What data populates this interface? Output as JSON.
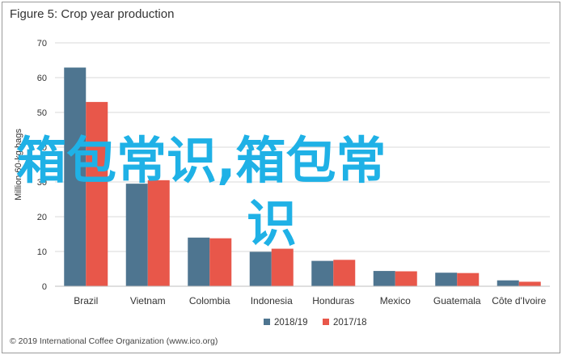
{
  "title": "Figure 5: Crop year production",
  "footer": "© 2019 International Coffee Organization (www.ico.org)",
  "watermark": {
    "line1": "箱包常识,箱包常",
    "line2": "识"
  },
  "colors": {
    "series1": "#4e7590",
    "series2": "#e8574a",
    "grid": "#d9d9d9",
    "watermark": "#1fb1e6"
  },
  "chart_data": {
    "type": "bar",
    "title": "Figure 5: Crop year production",
    "ylabel": "Million 60-kg bags",
    "xlabel": "",
    "ylim": [
      0,
      70
    ],
    "yticks": [
      0,
      10,
      20,
      30,
      40,
      50,
      60,
      70
    ],
    "grid": true,
    "legend_position": "bottom",
    "categories": [
      "Brazil",
      "Vietnam",
      "Colombia",
      "Indonesia",
      "Honduras",
      "Mexico",
      "Guatemala",
      "Côte d'Ivoire"
    ],
    "series": [
      {
        "name": "2018/19",
        "values": [
          62.9,
          29.5,
          14.0,
          9.9,
          7.3,
          4.4,
          3.9,
          1.7
        ]
      },
      {
        "name": "2017/18",
        "values": [
          53.0,
          30.5,
          13.8,
          10.8,
          7.6,
          4.3,
          3.8,
          1.3
        ]
      }
    ]
  }
}
